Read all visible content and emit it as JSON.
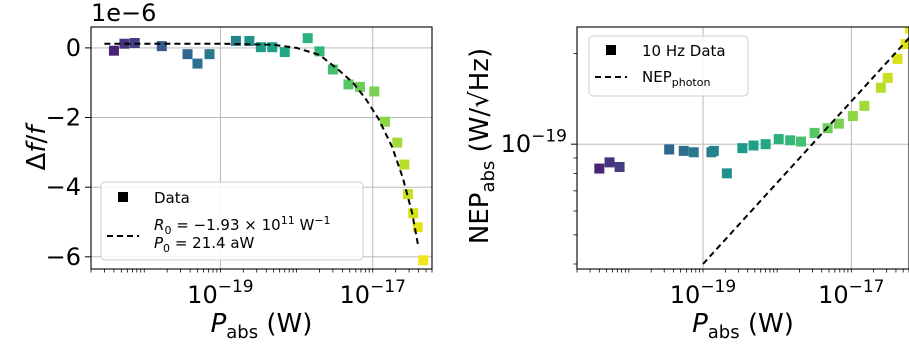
{
  "chart_data": [
    {
      "type": "scatter",
      "offset_text": "1e−6",
      "xlabel": "P_abs (W)",
      "ylabel": "Δf/f",
      "xscale": "log",
      "xlim": [
        2e-21,
        6e-17
      ],
      "ylim": [
        -6.35,
        0.6
      ],
      "xticks": [
        1e-19,
        1e-17
      ],
      "xtick_labels": [
        "10^−19",
        "10^−17"
      ],
      "yticks": [
        0,
        -2,
        -4,
        -6
      ],
      "ytick_labels": [
        "0",
        "−2",
        "−4",
        "−6"
      ],
      "grid": true,
      "legend": {
        "placement": "lower-left",
        "entries": [
          {
            "marker": "square",
            "label": "Data"
          },
          {
            "marker": "dashed-line",
            "label_line1": "R_0 = −1.93 × 10^11 W^−1",
            "label_line2": "P_0 = 21.4 aW"
          }
        ]
      },
      "series": [
        {
          "points": [
            {
              "x": 4e-21,
              "y": -0.08,
              "color": "#482475"
            },
            {
              "x": 5.5e-21,
              "y": 0.12,
              "color": "#46337e"
            },
            {
              "x": 7.5e-21,
              "y": 0.14,
              "color": "#423f85"
            },
            {
              "x": 1.7e-20,
              "y": 0.05,
              "color": "#38598c"
            },
            {
              "x": 3.7e-20,
              "y": -0.18,
              "color": "#31668e"
            },
            {
              "x": 5e-20,
              "y": -0.45,
              "color": "#2e6e8e"
            },
            {
              "x": 7.2e-20,
              "y": -0.18,
              "color": "#2a788e"
            },
            {
              "x": 1.6e-19,
              "y": 0.2,
              "color": "#25838e"
            },
            {
              "x": 2.4e-19,
              "y": 0.2,
              "color": "#21918c"
            },
            {
              "x": 3.4e-19,
              "y": 0.02,
              "color": "#1f9a8a"
            },
            {
              "x": 4.8e-19,
              "y": 0.02,
              "color": "#1fa188"
            },
            {
              "x": 7e-19,
              "y": -0.12,
              "color": "#22a785"
            },
            {
              "x": 1.4e-18,
              "y": 0.28,
              "color": "#2cb17e"
            },
            {
              "x": 2e-18,
              "y": -0.1,
              "color": "#35b779"
            },
            {
              "x": 3e-18,
              "y": -0.62,
              "color": "#44bf70"
            },
            {
              "x": 4.8e-18,
              "y": -1.05,
              "color": "#56c667"
            },
            {
              "x": 6.8e-18,
              "y": -1.12,
              "color": "#6ccd5a"
            },
            {
              "x": 1.05e-17,
              "y": -1.25,
              "color": "#7ad151"
            },
            {
              "x": 1.45e-17,
              "y": -2.12,
              "color": "#8bd646"
            },
            {
              "x": 2.1e-17,
              "y": -2.72,
              "color": "#a2da37"
            },
            {
              "x": 2.6e-17,
              "y": -3.35,
              "color": "#b5de2b"
            },
            {
              "x": 2.9e-17,
              "y": -4.2,
              "color": "#c8e020"
            },
            {
              "x": 3.4e-17,
              "y": -4.75,
              "color": "#d5e21a"
            },
            {
              "x": 3.9e-17,
              "y": -5.15,
              "color": "#e2e418"
            },
            {
              "x": 4.6e-17,
              "y": -6.1,
              "color": "#f1e51d"
            }
          ]
        },
        {
          "style": "dashed-line",
          "points": [
            {
              "x": 3e-21,
              "y": 0.12
            },
            {
              "x": 1e-19,
              "y": 0.12
            },
            {
              "x": 5e-19,
              "y": 0.09
            },
            {
              "x": 1e-18,
              "y": 0.0
            },
            {
              "x": 2e-18,
              "y": -0.2
            },
            {
              "x": 3.5e-18,
              "y": -0.62
            },
            {
              "x": 5.5e-18,
              "y": -1.0
            },
            {
              "x": 8e-18,
              "y": -1.45
            },
            {
              "x": 1.2e-17,
              "y": -2.05
            },
            {
              "x": 1.8e-17,
              "y": -2.85
            },
            {
              "x": 2.5e-17,
              "y": -3.75
            },
            {
              "x": 3.3e-17,
              "y": -4.75
            },
            {
              "x": 4e-17,
              "y": -5.75
            }
          ]
        }
      ]
    },
    {
      "type": "scatter",
      "xlabel": "P_abs (W)",
      "ylabel": "NEP_abs (W/√Hz)",
      "xscale": "log",
      "yscale": "log",
      "xlim": [
        2e-21,
        6e-17
      ],
      "ylim": [
        3.85e-20,
        2.45e-19
      ],
      "xticks": [
        1e-19,
        1e-17
      ],
      "xtick_labels": [
        "10^−19",
        "10^−17"
      ],
      "yticks": [
        1e-19
      ],
      "ytick_labels": [
        "10^−19"
      ],
      "grid": true,
      "legend": {
        "placement": "top-left",
        "entries": [
          {
            "marker": "square",
            "label": "10 Hz Data"
          },
          {
            "marker": "dashed-line",
            "label": "NEP_photon"
          }
        ]
      },
      "series": [
        {
          "name": "10 Hz Data",
          "points": [
            {
              "x": 4e-21,
              "y": 8.3e-20,
              "color": "#482475"
            },
            {
              "x": 5.5e-21,
              "y": 8.7e-20,
              "color": "#46337e"
            },
            {
              "x": 7.5e-21,
              "y": 8.4e-20,
              "color": "#423f85"
            },
            {
              "x": 3.5e-20,
              "y": 9.6e-20,
              "color": "#31668e"
            },
            {
              "x": 5.5e-20,
              "y": 9.5e-20,
              "color": "#2e6e8e"
            },
            {
              "x": 7.5e-20,
              "y": 9.4e-20,
              "color": "#2a788e"
            },
            {
              "x": 1.3e-19,
              "y": 9.4e-20,
              "color": "#287c8e"
            },
            {
              "x": 1.4e-19,
              "y": 9.5e-20,
              "color": "#25838e"
            },
            {
              "x": 2.1e-19,
              "y": 8e-20,
              "color": "#21918c"
            },
            {
              "x": 3.4e-19,
              "y": 9.7e-20,
              "color": "#1f9a8a"
            },
            {
              "x": 4.8e-19,
              "y": 9.9e-20,
              "color": "#1fa188"
            },
            {
              "x": 7e-19,
              "y": 1e-19,
              "color": "#22a785"
            },
            {
              "x": 1.05e-18,
              "y": 1.04e-19,
              "color": "#2cb17e"
            },
            {
              "x": 1.5e-18,
              "y": 1.03e-19,
              "color": "#35b779"
            },
            {
              "x": 2.1e-18,
              "y": 1.02e-19,
              "color": "#44bf70"
            },
            {
              "x": 3.2e-18,
              "y": 1.09e-19,
              "color": "#56c667"
            },
            {
              "x": 4.8e-18,
              "y": 1.13e-19,
              "color": "#6ccd5a"
            },
            {
              "x": 6.8e-18,
              "y": 1.17e-19,
              "color": "#7ad151"
            },
            {
              "x": 1.05e-17,
              "y": 1.24e-19,
              "color": "#8bd646"
            },
            {
              "x": 1.5e-17,
              "y": 1.34e-19,
              "color": "#a2da37"
            },
            {
              "x": 2.5e-17,
              "y": 1.54e-19,
              "color": "#b5de2b"
            },
            {
              "x": 3.1e-17,
              "y": 1.66e-19,
              "color": "#c8e020"
            },
            {
              "x": 4.2e-17,
              "y": 1.92e-19,
              "color": "#d5e21a"
            },
            {
              "x": 5.4e-17,
              "y": 2.15e-19,
              "color": "#e2e418"
            },
            {
              "x": 6.2e-17,
              "y": 2.42e-19,
              "color": "#f1e51d"
            }
          ]
        },
        {
          "name": "NEP_photon",
          "style": "dashed-line",
          "points": [
            {
              "x": 1e-19,
              "y": 4e-20
            },
            {
              "x": 6e-17,
              "y": 2.25e-19
            }
          ]
        }
      ]
    }
  ]
}
